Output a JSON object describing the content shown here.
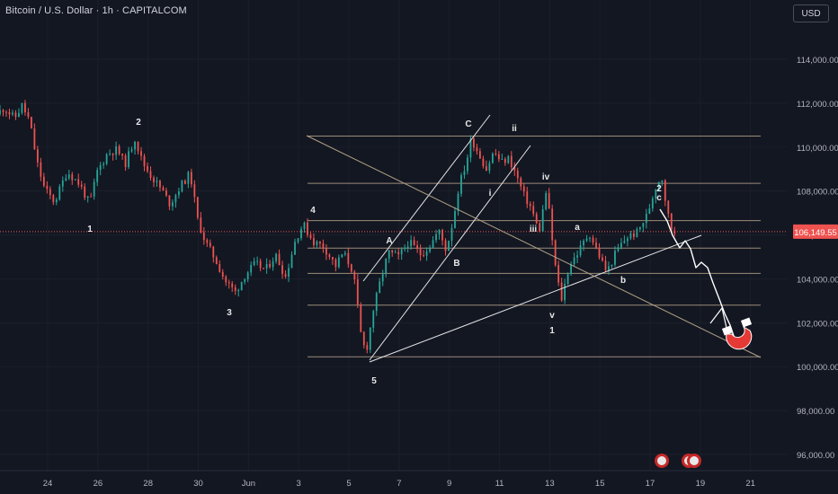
{
  "header": {
    "title": "Bitcoin / U.S. Dollar · 1h · CAPITALCOM",
    "currency": "USD"
  },
  "colors": {
    "background": "#131722",
    "up": "#26a69a",
    "down": "#ef5350",
    "fib_line": "#b2a186",
    "white_line": "#e6e6e6",
    "price_line": "#ef5350",
    "magnet": "#e53935"
  },
  "chart_data": {
    "type": "candlestick",
    "symbol": "Bitcoin / U.S. Dollar",
    "interval": "1h",
    "y_axis": {
      "range": [
        95200,
        115700
      ],
      "ticks": [
        96000,
        98000,
        100000,
        102000,
        104000,
        106000,
        108000,
        110000,
        112000,
        114000
      ],
      "tick_labels": [
        "96,000.00",
        "98,000.00",
        "100,000.00",
        "102,000.00",
        "104,000.00",
        "106,000.00",
        "108,000.00",
        "110,000.00",
        "112,000.00",
        "114,000.00"
      ]
    },
    "x_axis": {
      "range": [
        22.6,
        21.8
      ],
      "ticks": [
        {
          "label": "24",
          "t": 24
        },
        {
          "label": "26",
          "t": 26
        },
        {
          "label": "28",
          "t": 28
        },
        {
          "label": "30",
          "t": 30
        },
        {
          "label": "Jun",
          "t": 32
        },
        {
          "label": "3",
          "t": 34
        },
        {
          "label": "5",
          "t": 36
        },
        {
          "label": "7",
          "t": 38
        },
        {
          "label": "9",
          "t": 40
        },
        {
          "label": "11",
          "t": 42
        },
        {
          "label": "13",
          "t": 44
        },
        {
          "label": "15",
          "t": 46
        },
        {
          "label": "17",
          "t": 48
        },
        {
          "label": "19",
          "t": 50
        },
        {
          "label": "21",
          "t": 52
        }
      ],
      "t_min": 22.1,
      "t_max": 53.3
    },
    "last_price": 106149.55,
    "last_price_label": "106,149.55",
    "price_path": [
      [
        22.1,
        111500
      ],
      [
        22.4,
        111800
      ],
      [
        22.8,
        111300
      ],
      [
        23.1,
        111900
      ],
      [
        23.4,
        111200
      ],
      [
        23.7,
        109300
      ],
      [
        24.0,
        108100
      ],
      [
        24.4,
        107500
      ],
      [
        24.9,
        108900
      ],
      [
        25.4,
        108300
      ],
      [
        25.8,
        107400
      ],
      [
        26.1,
        108900
      ],
      [
        26.5,
        109700
      ],
      [
        26.9,
        109900
      ],
      [
        27.2,
        109200
      ],
      [
        27.6,
        110400
      ],
      [
        27.9,
        109300
      ],
      [
        28.3,
        108600
      ],
      [
        28.7,
        108000
      ],
      [
        29.0,
        107400
      ],
      [
        29.4,
        108200
      ],
      [
        29.8,
        108800
      ],
      [
        30.1,
        106700
      ],
      [
        30.4,
        105700
      ],
      [
        30.8,
        104900
      ],
      [
        31.2,
        103900
      ],
      [
        31.6,
        103400
      ],
      [
        32.0,
        104200
      ],
      [
        32.4,
        104700
      ],
      [
        32.8,
        104400
      ],
      [
        33.2,
        105100
      ],
      [
        33.6,
        104100
      ],
      [
        34.0,
        105800
      ],
      [
        34.3,
        106500
      ],
      [
        34.7,
        105700
      ],
      [
        35.1,
        105500
      ],
      [
        35.6,
        104600
      ],
      [
        35.9,
        105200
      ],
      [
        36.3,
        104300
      ],
      [
        36.6,
        101500
      ],
      [
        36.8,
        100600
      ],
      [
        37.1,
        102600
      ],
      [
        37.4,
        104000
      ],
      [
        37.7,
        105200
      ],
      [
        38.1,
        105000
      ],
      [
        38.5,
        105700
      ],
      [
        39.0,
        105100
      ],
      [
        39.4,
        105600
      ],
      [
        39.7,
        106200
      ],
      [
        40.0,
        105300
      ],
      [
        40.3,
        106800
      ],
      [
        40.5,
        108200
      ],
      [
        40.8,
        109300
      ],
      [
        41.0,
        110400
      ],
      [
        41.3,
        109700
      ],
      [
        41.6,
        109000
      ],
      [
        41.9,
        109800
      ],
      [
        42.2,
        109300
      ],
      [
        42.5,
        109500
      ],
      [
        42.8,
        108700
      ],
      [
        43.1,
        107800
      ],
      [
        43.4,
        107200
      ],
      [
        43.7,
        106100
      ],
      [
        44.0,
        108100
      ],
      [
        44.2,
        106000
      ],
      [
        44.4,
        104100
      ],
      [
        44.6,
        103100
      ],
      [
        44.9,
        104600
      ],
      [
        45.3,
        105300
      ],
      [
        45.7,
        106100
      ],
      [
        46.0,
        105300
      ],
      [
        46.4,
        104300
      ],
      [
        46.8,
        105300
      ],
      [
        47.2,
        105900
      ],
      [
        47.6,
        106100
      ],
      [
        48.0,
        106900
      ],
      [
        48.4,
        108400
      ],
      [
        48.6,
        108600
      ],
      [
        48.8,
        107100
      ],
      [
        49.0,
        106150
      ]
    ],
    "levels": [
      110500,
      108350,
      106650,
      105400,
      104250,
      102800,
      100450
    ],
    "wave_labels": [
      "1",
      "2",
      "3",
      "4",
      "5",
      "A",
      "B",
      "C",
      "i",
      "ii",
      "iii",
      "iv",
      "v",
      "1",
      "a",
      "b",
      "2",
      "c"
    ]
  }
}
